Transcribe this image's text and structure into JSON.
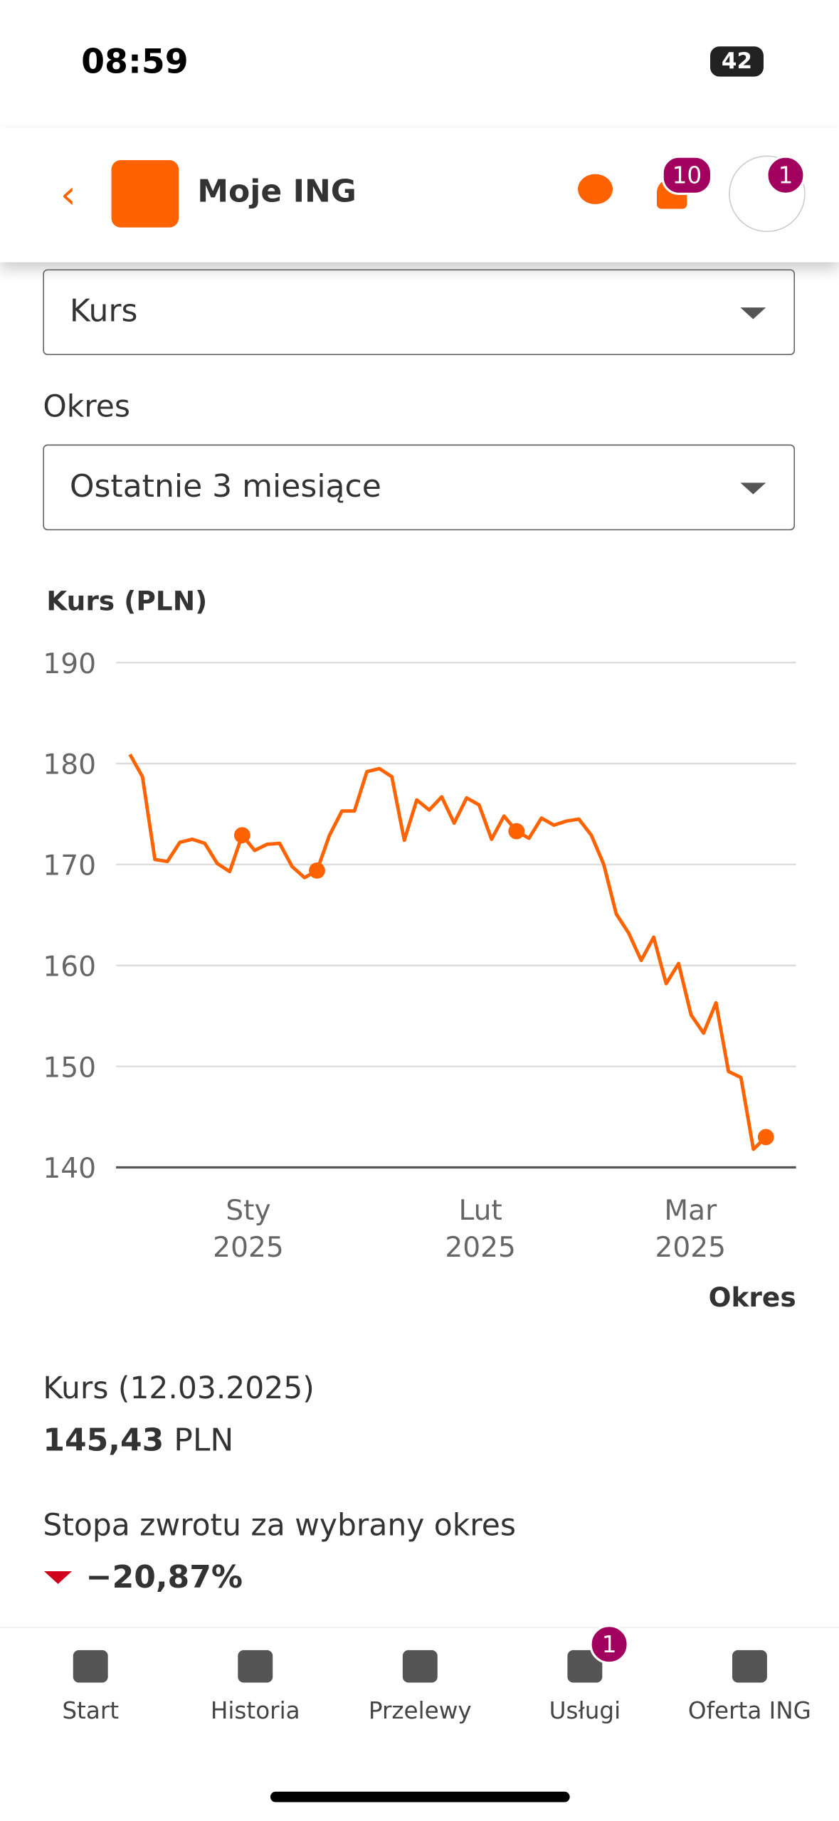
{
  "status_bar": {
    "time": "08:59",
    "battery": "42"
  },
  "header": {
    "title": "Moje ING",
    "notifications_badge": "10",
    "profile_badge": "1"
  },
  "form": {
    "type_select": "Kurs",
    "period_label": "Okres",
    "period_select": "Ostatnie 3 miesiące"
  },
  "chart_data": {
    "type": "line",
    "y_label": "Kurs (PLN)",
    "x_label": "Okres",
    "x_labels": [
      {
        "month": "Sty",
        "year": "2025"
      },
      {
        "month": "Lut",
        "year": "2025"
      },
      {
        "month": "Mar",
        "year": "2025"
      }
    ],
    "ylim": [
      140,
      190
    ],
    "yticks": [
      140,
      150,
      160,
      170,
      180,
      190
    ],
    "grid": true,
    "series": [
      {
        "color": "#ff6200",
        "values": [
          180.9,
          178.7,
          170.5,
          170.3,
          172.2,
          172.5,
          172.1,
          170.1,
          169.3,
          172.9,
          171.4,
          172.0,
          172.1,
          169.8,
          168.7,
          169.4,
          172.9,
          175.3,
          175.3,
          179.2,
          179.5,
          178.7,
          172.4,
          176.4,
          175.4,
          176.7,
          174.1,
          176.6,
          175.9,
          172.5,
          174.8,
          173.3,
          172.6,
          174.6,
          173.9,
          174.3,
          174.5,
          172.9,
          170.0,
          165.1,
          163.2,
          160.5,
          162.8,
          158.2,
          160.2,
          155.1,
          153.3,
          156.3,
          149.5,
          148.9,
          141.8,
          143.0
        ]
      }
    ],
    "highlighted_points": [
      9,
      15,
      31,
      51
    ]
  },
  "summary": {
    "rate_label": "Kurs (12.03.2025)",
    "rate_value": "145,43",
    "rate_unit": "PLN",
    "return_label": "Stopa zwrotu za wybrany okres",
    "return_value": "−20,87%"
  },
  "nav": {
    "items": [
      "Start",
      "Historia",
      "Przelewy",
      "Usługi",
      "Oferta ING"
    ],
    "services_badge": "1"
  }
}
